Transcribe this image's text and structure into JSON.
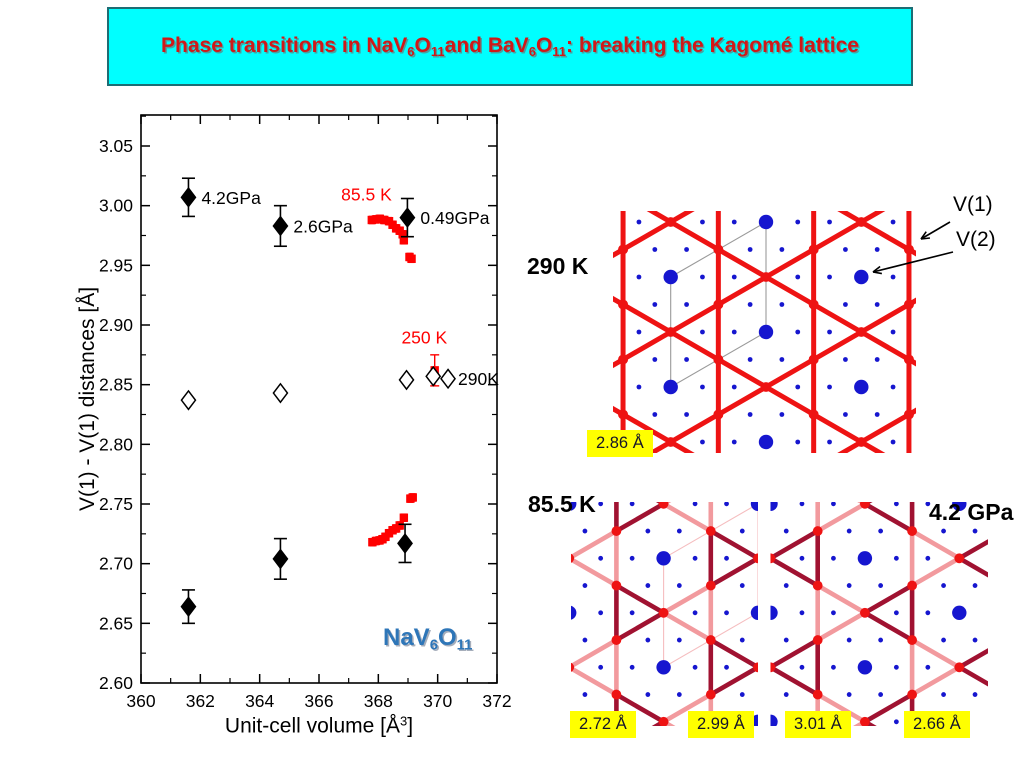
{
  "title": {
    "background": "#00ffff",
    "border_color": "#1d6d74",
    "text_color": "#d01818",
    "parts": [
      {
        "t": "Phase transitions in NaV"
      },
      {
        "t": "6",
        "sub": true
      },
      {
        "t": "O"
      },
      {
        "t": "11",
        "sub": true
      },
      {
        "t": "and BaV"
      },
      {
        "t": "6",
        "sub": true
      },
      {
        "t": "O"
      },
      {
        "t": "11",
        "sub": true
      },
      {
        "t": ": breaking the Kagomé lattice"
      }
    ]
  },
  "chart_data": {
    "type": "scatter",
    "xlabel_parts": [
      {
        "t": "Unit-cell volume [Å"
      },
      {
        "t": "3",
        "sup": true
      },
      {
        "t": "]"
      }
    ],
    "ylabel": "V(1) - V(1) distances [Å]",
    "xlim": [
      360,
      372
    ],
    "ylim": [
      2.6,
      3.076
    ],
    "x_ticks": [
      "360",
      "362",
      "364",
      "366",
      "368",
      "370",
      "372"
    ],
    "x_minor_step": 1,
    "y_ticks": [
      "2.60",
      "2.65",
      "2.70",
      "2.75",
      "2.80",
      "2.85",
      "2.90",
      "2.95",
      "3.00",
      "3.05"
    ],
    "y_minor_step": 0.025,
    "grid": false,
    "legend": "none",
    "series": [
      {
        "name": "pressure points (filled diamonds)",
        "marker": "filled-diamond",
        "color": "#000000",
        "points": [
          {
            "x": 361.6,
            "y": 3.007,
            "err": 0.016,
            "label": "4.2GPa"
          },
          {
            "x": 364.7,
            "y": 2.983,
            "err": 0.017,
            "label": "2.6GPa"
          },
          {
            "x": 368.98,
            "y": 2.99,
            "err": 0.016,
            "label": "0.49GPa"
          },
          {
            "x": 361.6,
            "y": 2.664,
            "err": 0.014
          },
          {
            "x": 364.7,
            "y": 2.704,
            "err": 0.017
          },
          {
            "x": 368.9,
            "y": 2.717,
            "err": 0.016
          }
        ]
      },
      {
        "name": "290 K open diamonds",
        "marker": "open-diamond",
        "color": "#000000",
        "points": [
          {
            "x": 361.6,
            "y": 2.837
          },
          {
            "x": 364.7,
            "y": 2.843
          },
          {
            "x": 368.95,
            "y": 2.854
          },
          {
            "x": 369.85,
            "y": 2.857
          },
          {
            "x": 370.35,
            "y": 2.855,
            "label": "290K"
          }
        ]
      },
      {
        "name": "85.5 K upper branch",
        "marker": "square",
        "color": "#ff0000",
        "err": 0.003,
        "points": [
          {
            "x": 367.78,
            "y": 2.988
          },
          {
            "x": 367.92,
            "y": 2.9885
          },
          {
            "x": 368.05,
            "y": 2.989
          },
          {
            "x": 368.2,
            "y": 2.988
          },
          {
            "x": 368.36,
            "y": 2.987
          },
          {
            "x": 368.48,
            "y": 2.984
          },
          {
            "x": 368.6,
            "y": 2.981
          },
          {
            "x": 368.72,
            "y": 2.979
          },
          {
            "x": 368.82,
            "y": 2.976
          },
          {
            "x": 368.86,
            "y": 2.971
          },
          {
            "x": 369.05,
            "y": 2.957
          },
          {
            "x": 369.12,
            "y": 2.9555
          }
        ]
      },
      {
        "name": "85.5 K lower branch",
        "marker": "square",
        "color": "#ff0000",
        "err": 0.003,
        "points": [
          {
            "x": 367.8,
            "y": 2.718
          },
          {
            "x": 367.92,
            "y": 2.719
          },
          {
            "x": 368.04,
            "y": 2.7195
          },
          {
            "x": 368.14,
            "y": 2.7205
          },
          {
            "x": 368.24,
            "y": 2.7225
          },
          {
            "x": 368.36,
            "y": 2.7255
          },
          {
            "x": 368.48,
            "y": 2.728
          },
          {
            "x": 368.6,
            "y": 2.7295
          },
          {
            "x": 368.72,
            "y": 2.732
          },
          {
            "x": 368.86,
            "y": 2.7385
          },
          {
            "x": 369.08,
            "y": 2.7545
          },
          {
            "x": 369.16,
            "y": 2.7555
          }
        ]
      },
      {
        "name": "250 K point",
        "marker": "square",
        "color": "#ff0000",
        "points": [
          {
            "x": 369.9,
            "y": 2.862,
            "err": 0.013
          }
        ]
      }
    ],
    "annotations": [
      {
        "text": "85.5 K",
        "x": 367.6,
        "y": 3.0045,
        "color": "#ff0000"
      },
      {
        "text": "250 K",
        "x": 369.55,
        "y": 2.8845,
        "color": "#ff0000"
      }
    ],
    "formula_parts": [
      {
        "t": "NaV"
      },
      {
        "t": "6",
        "sub": true
      },
      {
        "t": "O"
      },
      {
        "t": "11",
        "sub": true
      }
    ],
    "formula_color": "#2e76b8"
  },
  "lattice_panel": {
    "top": {
      "temp_label": "290 K",
      "bond_tag": "2.86 Å",
      "v1_label": "V(1)",
      "v2_label": "V(2)"
    },
    "bottom": {
      "left_label": "85.5 K",
      "right_label": "4.2 GPa",
      "tags": [
        "2.72 Å",
        "2.99 Å",
        "3.01 Å",
        "2.66 Å"
      ]
    },
    "colors": {
      "bond_red": "#ee1313",
      "bond_dark": "#a01231",
      "bond_pink": "#f29a9e",
      "atom_blue": "#1616cf",
      "unit_cell_top": "#9a9a9a",
      "unit_cell_bottom": "#f5bdbf",
      "tag_bg": "#ffff00",
      "tag_text": "#15152a"
    }
  }
}
